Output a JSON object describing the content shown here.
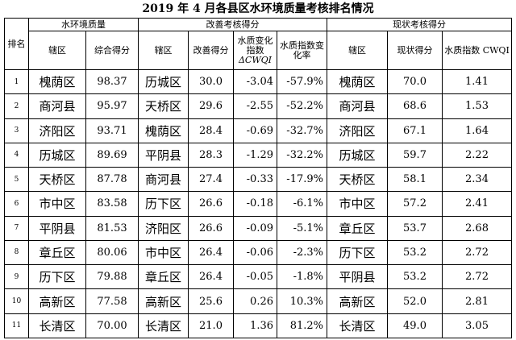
{
  "title": "2019 年 4 月各县区水环境质量考核排名情况",
  "headers": {
    "rank": "排名",
    "group_env": "水环境质量",
    "group_improve": "改善考核得分",
    "group_current": "现状考核得分",
    "district": "辖区",
    "total_score": "综合得分",
    "improve_score": "改善得分",
    "index_change_line1": "水质变化",
    "index_change_line2": "指数",
    "index_change_line3": "ΔCWQI",
    "change_rate": "水质指数变化率",
    "current_score": "现状得分",
    "water_index": "水质指数 CWQI"
  },
  "rows": [
    {
      "rank": "1",
      "d1": "槐荫区",
      "total": "98.37",
      "d2": "历城区",
      "imp": "30.0",
      "delta": "-3.04",
      "rate": "-57.9%",
      "d3": "槐荫区",
      "cur": "70.0",
      "cwqi": "1.41"
    },
    {
      "rank": "2",
      "d1": "商河县",
      "total": "95.97",
      "d2": "天桥区",
      "imp": "29.6",
      "delta": "-2.55",
      "rate": "-52.2%",
      "d3": "商河县",
      "cur": "68.6",
      "cwqi": "1.53"
    },
    {
      "rank": "3",
      "d1": "济阳区",
      "total": "93.71",
      "d2": "槐荫区",
      "imp": "28.4",
      "delta": "-0.69",
      "rate": "-32.7%",
      "d3": "济阳区",
      "cur": "67.1",
      "cwqi": "1.64"
    },
    {
      "rank": "4",
      "d1": "历城区",
      "total": "89.69",
      "d2": "平阴县",
      "imp": "28.3",
      "delta": "-1.29",
      "rate": "-32.2%",
      "d3": "历城区",
      "cur": "59.7",
      "cwqi": "2.22"
    },
    {
      "rank": "5",
      "d1": "天桥区",
      "total": "87.78",
      "d2": "商河县",
      "imp": "27.4",
      "delta": "-0.33",
      "rate": "-17.9%",
      "d3": "天桥区",
      "cur": "58.1",
      "cwqi": "2.34"
    },
    {
      "rank": "6",
      "d1": "市中区",
      "total": "83.58",
      "d2": "历下区",
      "imp": "26.6",
      "delta": "-0.18",
      "rate": "-6.1%",
      "d3": "市中区",
      "cur": "57.2",
      "cwqi": "2.41"
    },
    {
      "rank": "7",
      "d1": "平阴县",
      "total": "81.53",
      "d2": "济阳区",
      "imp": "26.6",
      "delta": "-0.09",
      "rate": "-5.1%",
      "d3": "章丘区",
      "cur": "53.7",
      "cwqi": "2.68"
    },
    {
      "rank": "8",
      "d1": "章丘区",
      "total": "80.06",
      "d2": "市中区",
      "imp": "26.4",
      "delta": "-0.06",
      "rate": "-2.3%",
      "d3": "历下区",
      "cur": "53.2",
      "cwqi": "2.72"
    },
    {
      "rank": "9",
      "d1": "历下区",
      "total": "79.88",
      "d2": "章丘区",
      "imp": "26.4",
      "delta": "-0.05",
      "rate": "-1.8%",
      "d3": "平阴县",
      "cur": "53.2",
      "cwqi": "2.72"
    },
    {
      "rank": "10",
      "d1": "高新区",
      "total": "77.58",
      "d2": "高新区",
      "imp": "25.6",
      "delta": "0.26",
      "rate": "10.3%",
      "d3": "高新区",
      "cur": "52.0",
      "cwqi": "2.81"
    },
    {
      "rank": "11",
      "d1": "长清区",
      "total": "70.00",
      "d2": "长清区",
      "imp": "21.0",
      "delta": "1.36",
      "rate": "81.2%",
      "d3": "长清区",
      "cur": "49.0",
      "cwqi": "3.05"
    }
  ]
}
